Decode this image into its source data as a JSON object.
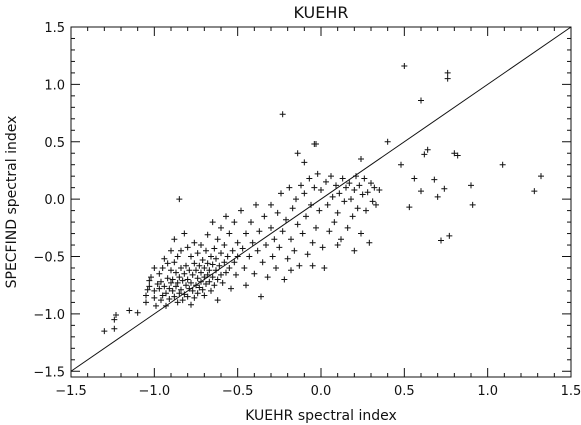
{
  "chart_data": {
    "type": "scatter",
    "title": "KUEHR",
    "xlabel": "KUEHR spectral index",
    "ylabel": "SPECFIND spectral index",
    "xlim": [
      -1.5,
      1.5
    ],
    "ylim": [
      -1.55,
      1.5
    ],
    "xticks": [
      -1.5,
      -1.0,
      -0.5,
      0.0,
      0.5,
      1.0,
      1.5
    ],
    "xtick_labels": [
      "−1.5",
      "−1.0",
      "−0.5",
      "0.0",
      "0.5",
      "1.0",
      "1.5"
    ],
    "yticks": [
      -1.5,
      -1.0,
      -0.5,
      0.0,
      0.5,
      1.0,
      1.5
    ],
    "ytick_labels": [
      "−1.5",
      "−1.0",
      "−0.5",
      "0.0",
      "0.5",
      "1.0",
      "1.5"
    ],
    "grid": false,
    "marker": "+",
    "reference_line": {
      "slope": 1,
      "intercept": 0
    },
    "series": [
      {
        "points": [
          [
            0.5,
            1.16
          ],
          [
            0.76,
            1.1
          ],
          [
            0.76,
            1.05
          ],
          [
            0.6,
            0.86
          ],
          [
            -0.23,
            0.74
          ],
          [
            -0.1,
            0.32
          ],
          [
            -0.04,
            0.48
          ],
          [
            -0.03,
            0.48
          ],
          [
            -0.14,
            0.4
          ],
          [
            0.4,
            0.5
          ],
          [
            0.24,
            0.35
          ],
          [
            0.48,
            0.3
          ],
          [
            0.62,
            0.39
          ],
          [
            0.64,
            0.43
          ],
          [
            0.8,
            0.4
          ],
          [
            0.82,
            0.38
          ],
          [
            1.09,
            0.3
          ],
          [
            1.32,
            0.2
          ],
          [
            1.28,
            0.07
          ],
          [
            0.9,
            0.12
          ],
          [
            0.91,
            -0.05
          ],
          [
            0.53,
            -0.07
          ],
          [
            0.68,
            0.17
          ],
          [
            0.56,
            0.18
          ],
          [
            0.72,
            -0.36
          ],
          [
            0.77,
            -0.32
          ],
          [
            0.7,
            0.02
          ],
          [
            0.6,
            0.07
          ],
          [
            0.74,
            0.09
          ],
          [
            -1.3,
            -1.15
          ],
          [
            -1.24,
            -1.05
          ],
          [
            -1.23,
            -1.01
          ],
          [
            -1.24,
            -1.13
          ],
          [
            -1.15,
            -0.97
          ],
          [
            -1.1,
            -0.99
          ],
          [
            -1.05,
            -0.9
          ],
          [
            -1.05,
            -0.84
          ],
          [
            -1.04,
            -0.79
          ],
          [
            -1.03,
            -0.76
          ],
          [
            -1.03,
            -0.71
          ],
          [
            -1.02,
            -0.68
          ],
          [
            -1.0,
            -0.86
          ],
          [
            -1.0,
            -0.8
          ],
          [
            -1.0,
            -0.6
          ],
          [
            -0.99,
            -0.93
          ],
          [
            -0.98,
            -0.74
          ],
          [
            -0.97,
            -0.65
          ],
          [
            -0.97,
            -0.78
          ],
          [
            -0.96,
            -0.88
          ],
          [
            -0.96,
            -0.72
          ],
          [
            -0.95,
            -0.84
          ],
          [
            -0.95,
            -0.6
          ],
          [
            -0.94,
            -0.52
          ],
          [
            -0.94,
            -0.76
          ],
          [
            -0.93,
            -0.93
          ],
          [
            -0.93,
            -0.82
          ],
          [
            -0.92,
            -0.69
          ],
          [
            -0.92,
            -0.56
          ],
          [
            -0.91,
            -0.78
          ],
          [
            -0.91,
            -0.87
          ],
          [
            -0.9,
            -0.73
          ],
          [
            -0.9,
            -0.62
          ],
          [
            -0.9,
            -0.45
          ],
          [
            -0.89,
            -0.8
          ],
          [
            -0.89,
            -0.7
          ],
          [
            -0.88,
            -0.85
          ],
          [
            -0.88,
            -0.55
          ],
          [
            -0.88,
            -0.35
          ],
          [
            -0.87,
            -0.76
          ],
          [
            -0.87,
            -0.64
          ],
          [
            -0.86,
            -0.9
          ],
          [
            -0.86,
            -0.73
          ],
          [
            -0.86,
            -0.5
          ],
          [
            -0.85,
            -0.82
          ],
          [
            -0.85,
            -0.68
          ],
          [
            -0.85,
            0.0
          ],
          [
            -0.84,
            -0.79
          ],
          [
            -0.84,
            -0.6
          ],
          [
            -0.84,
            -0.45
          ],
          [
            -0.83,
            -0.88
          ],
          [
            -0.83,
            -0.71
          ],
          [
            -0.82,
            -0.83
          ],
          [
            -0.82,
            -0.65
          ],
          [
            -0.82,
            -0.3
          ],
          [
            -0.81,
            -0.75
          ],
          [
            -0.81,
            -0.58
          ],
          [
            -0.8,
            -0.85
          ],
          [
            -0.8,
            -0.7
          ],
          [
            -0.8,
            -0.42
          ],
          [
            -0.79,
            -0.78
          ],
          [
            -0.79,
            -0.62
          ],
          [
            -0.78,
            -0.92
          ],
          [
            -0.78,
            -0.73
          ],
          [
            -0.78,
            -0.5
          ],
          [
            -0.77,
            -0.8
          ],
          [
            -0.77,
            -0.66
          ],
          [
            -0.76,
            -0.86
          ],
          [
            -0.76,
            -0.56
          ],
          [
            -0.76,
            -0.38
          ],
          [
            -0.75,
            -0.75
          ],
          [
            -0.75,
            -0.62
          ],
          [
            -0.74,
            -0.82
          ],
          [
            -0.74,
            -0.69
          ],
          [
            -0.74,
            -0.47
          ],
          [
            -0.73,
            -0.77
          ],
          [
            -0.73,
            -0.58
          ],
          [
            -0.72,
            -0.72
          ],
          [
            -0.72,
            -0.64
          ],
          [
            -0.72,
            -0.4
          ],
          [
            -0.71,
            -0.79
          ],
          [
            -0.71,
            -0.53
          ],
          [
            -0.7,
            -0.68
          ],
          [
            -0.7,
            -0.6
          ],
          [
            -0.7,
            -0.84
          ],
          [
            -0.69,
            -0.74
          ],
          [
            -0.69,
            -0.45
          ],
          [
            -0.68,
            -0.66
          ],
          [
            -0.68,
            -0.56
          ],
          [
            -0.68,
            -0.31
          ],
          [
            -0.67,
            -0.72
          ],
          [
            -0.67,
            -0.62
          ],
          [
            -0.66,
            -0.8
          ],
          [
            -0.66,
            -0.5
          ],
          [
            -0.65,
            -0.68
          ],
          [
            -0.65,
            -0.57
          ],
          [
            -0.65,
            -0.2
          ],
          [
            -0.64,
            -0.75
          ],
          [
            -0.64,
            -0.43
          ],
          [
            -0.63,
            -0.62
          ],
          [
            -0.63,
            -0.52
          ],
          [
            -0.62,
            -0.7
          ],
          [
            -0.62,
            -0.35
          ],
          [
            -0.62,
            -0.88
          ],
          [
            -0.61,
            -0.58
          ],
          [
            -0.6,
            -0.66
          ],
          [
            -0.6,
            -0.47
          ],
          [
            -0.6,
            -0.25
          ],
          [
            -0.59,
            -0.73
          ],
          [
            -0.58,
            -0.55
          ],
          [
            -0.58,
            -0.4
          ],
          [
            -0.57,
            -0.64
          ],
          [
            -0.57,
            -0.15
          ],
          [
            -0.56,
            -0.5
          ],
          [
            -0.55,
            -0.6
          ],
          [
            -0.55,
            -0.3
          ],
          [
            -0.54,
            -0.78
          ],
          [
            -0.53,
            -0.45
          ],
          [
            -0.52,
            -0.55
          ],
          [
            -0.52,
            -0.2
          ],
          [
            -0.51,
            -0.66
          ],
          [
            -0.5,
            -0.38
          ],
          [
            -0.5,
            -0.5
          ],
          [
            -0.48,
            -0.1
          ],
          [
            -0.47,
            -0.43
          ],
          [
            -0.46,
            -0.6
          ],
          [
            -0.45,
            -0.3
          ],
          [
            -0.45,
            -0.75
          ],
          [
            -0.43,
            -0.5
          ],
          [
            -0.42,
            -0.2
          ],
          [
            -0.41,
            -0.38
          ],
          [
            -0.4,
            -0.65
          ],
          [
            -0.39,
            -0.05
          ],
          [
            -0.38,
            -0.45
          ],
          [
            -0.37,
            -0.28
          ],
          [
            -0.36,
            -0.85
          ],
          [
            -0.35,
            -0.55
          ],
          [
            -0.34,
            -0.15
          ],
          [
            -0.33,
            -0.4
          ],
          [
            -0.32,
            -0.68
          ],
          [
            -0.3,
            -0.25
          ],
          [
            -0.3,
            -0.05
          ],
          [
            -0.29,
            -0.5
          ],
          [
            -0.28,
            -0.35
          ],
          [
            -0.27,
            -0.6
          ],
          [
            -0.26,
            -0.12
          ],
          [
            -0.25,
            -0.42
          ],
          [
            -0.24,
            0.05
          ],
          [
            -0.23,
            -0.28
          ],
          [
            -0.22,
            -0.7
          ],
          [
            -0.21,
            -0.18
          ],
          [
            -0.2,
            -0.52
          ],
          [
            -0.19,
            0.1
          ],
          [
            -0.18,
            -0.35
          ],
          [
            -0.17,
            -0.08
          ],
          [
            -0.16,
            -0.45
          ],
          [
            -0.15,
            0.0
          ],
          [
            -0.14,
            -0.22
          ],
          [
            -0.13,
            -0.58
          ],
          [
            -0.12,
            0.12
          ],
          [
            -0.11,
            -0.3
          ],
          [
            -0.1,
            0.05
          ],
          [
            -0.09,
            -0.15
          ],
          [
            -0.08,
            -0.48
          ],
          [
            -0.07,
            0.18
          ],
          [
            -0.06,
            -0.05
          ],
          [
            -0.05,
            -0.38
          ],
          [
            -0.04,
            0.1
          ],
          [
            -0.03,
            -0.25
          ],
          [
            -0.02,
            0.22
          ],
          [
            -0.01,
            -0.1
          ],
          [
            0.0,
            0.08
          ],
          [
            0.01,
            -0.42
          ],
          [
            0.02,
            -0.6
          ],
          [
            0.03,
            0.15
          ],
          [
            0.04,
            -0.05
          ],
          [
            0.05,
            -0.28
          ],
          [
            0.06,
            0.2
          ],
          [
            0.07,
            0.02
          ],
          [
            0.08,
            -0.2
          ],
          [
            0.09,
            0.12
          ],
          [
            0.1,
            -0.12
          ],
          [
            0.11,
            0.05
          ],
          [
            0.12,
            -0.35
          ],
          [
            0.13,
            0.18
          ],
          [
            0.14,
            -0.02
          ],
          [
            0.15,
            0.1
          ],
          [
            0.16,
            -0.25
          ],
          [
            0.17,
            0.14
          ],
          [
            0.18,
            0.0
          ],
          [
            0.19,
            -0.15
          ],
          [
            0.2,
            0.08
          ],
          [
            0.21,
            0.2
          ],
          [
            0.22,
            -0.08
          ],
          [
            0.23,
            0.12
          ],
          [
            0.24,
            -0.3
          ],
          [
            0.25,
            0.04
          ],
          [
            0.26,
            0.18
          ],
          [
            0.27,
            -0.1
          ],
          [
            0.28,
            0.06
          ],
          [
            0.29,
            -0.38
          ],
          [
            0.3,
            0.14
          ],
          [
            0.31,
            -0.02
          ],
          [
            0.32,
            0.1
          ],
          [
            0.33,
            -0.05
          ],
          [
            0.35,
            0.08
          ],
          [
            -0.05,
            -0.58
          ],
          [
            -0.18,
            -0.62
          ],
          [
            0.1,
            -0.4
          ],
          [
            0.2,
            -0.45
          ]
        ]
      }
    ]
  }
}
